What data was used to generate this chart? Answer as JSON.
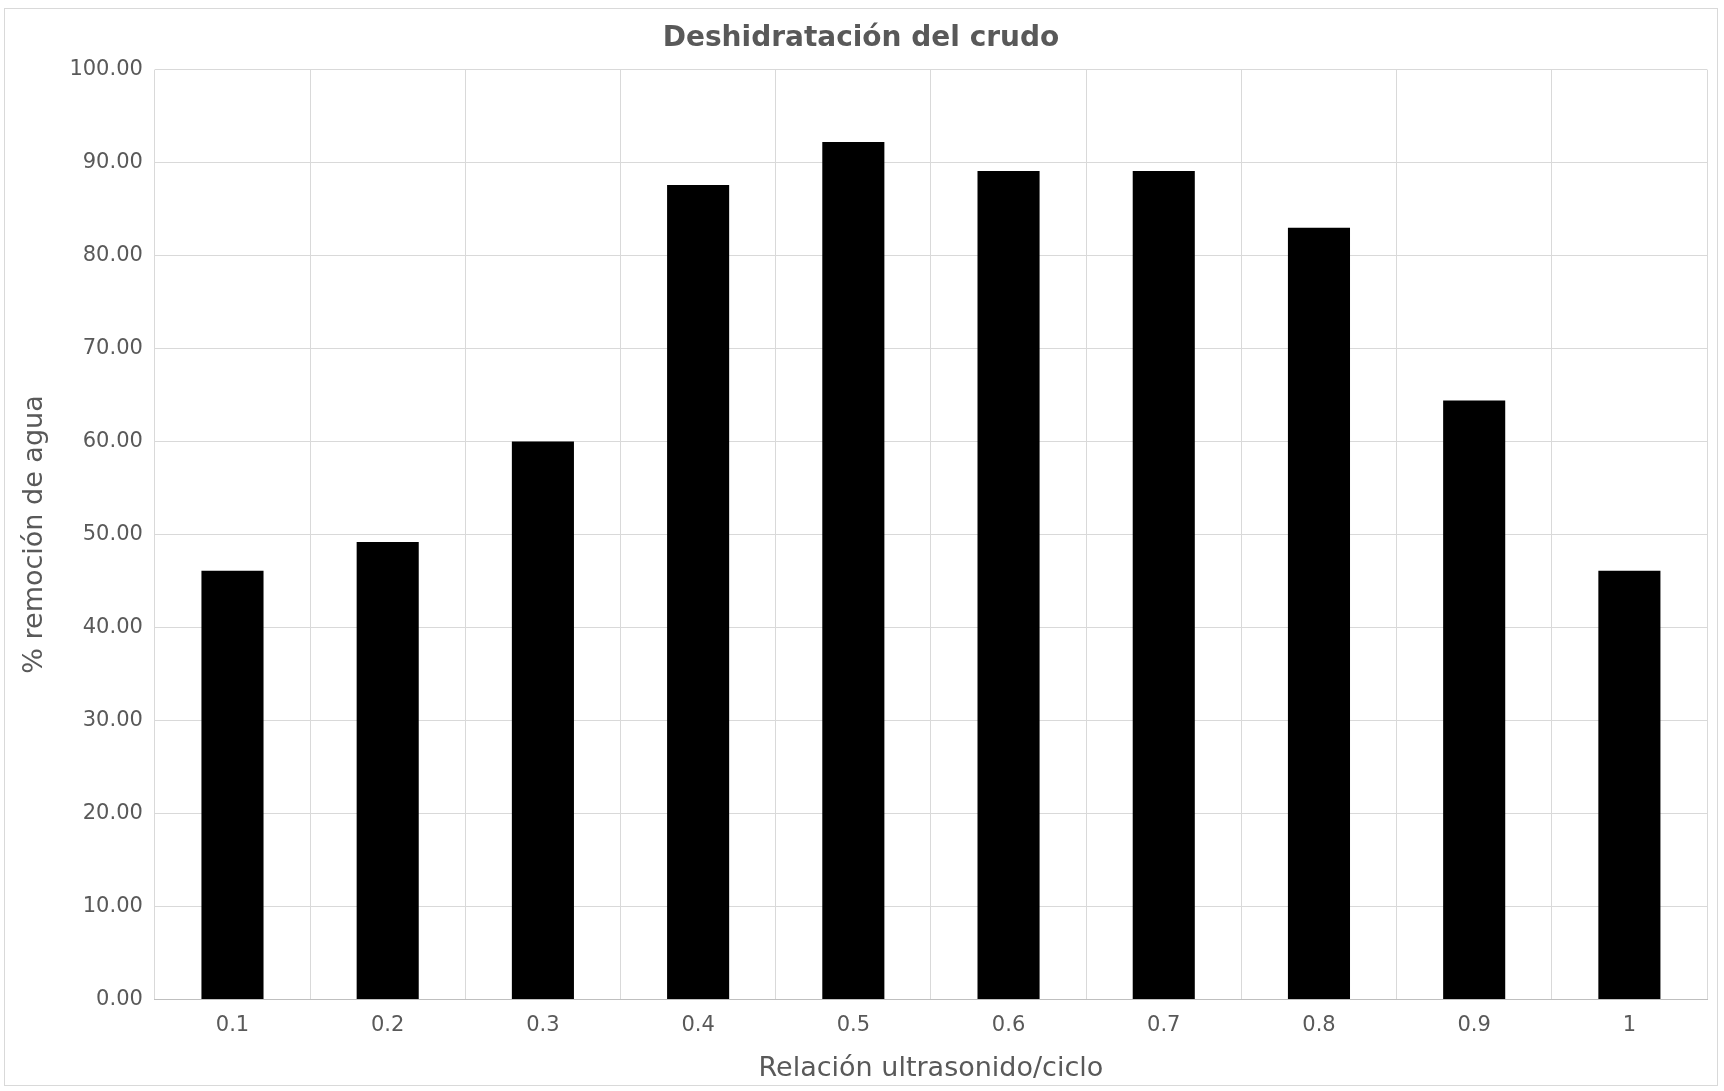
{
  "chart_data": {
    "type": "bar",
    "title": "Deshidratación del crudo",
    "xlabel": "Relación ultrasonido/ciclo",
    "ylabel": "% remoción de agua",
    "categories": [
      "0.1",
      "0.2",
      "0.3",
      "0.4",
      "0.5",
      "0.6",
      "0.7",
      "0.8",
      "0.9",
      "1"
    ],
    "values": [
      46.1,
      49.2,
      60,
      87.6,
      92.2,
      89.1,
      89.1,
      83.0,
      64.4,
      46.1
    ],
    "color": "#000000",
    "ylim": [
      0,
      100
    ],
    "yticks": [
      {
        "value": 0,
        "label": "0.00"
      },
      {
        "value": 10,
        "label": "10.00"
      },
      {
        "value": 20,
        "label": "20.00"
      },
      {
        "value": 30,
        "label": "30.00"
      },
      {
        "value": 40,
        "label": "40.00"
      },
      {
        "value": 50,
        "label": "50.00"
      },
      {
        "value": 60,
        "label": "60.00"
      },
      {
        "value": 70,
        "label": "70.00"
      },
      {
        "value": 80,
        "label": "80.00"
      },
      {
        "value": 90,
        "label": "90.00"
      },
      {
        "value": 100,
        "label": "100.00"
      }
    ],
    "grid": true,
    "legend": false
  }
}
